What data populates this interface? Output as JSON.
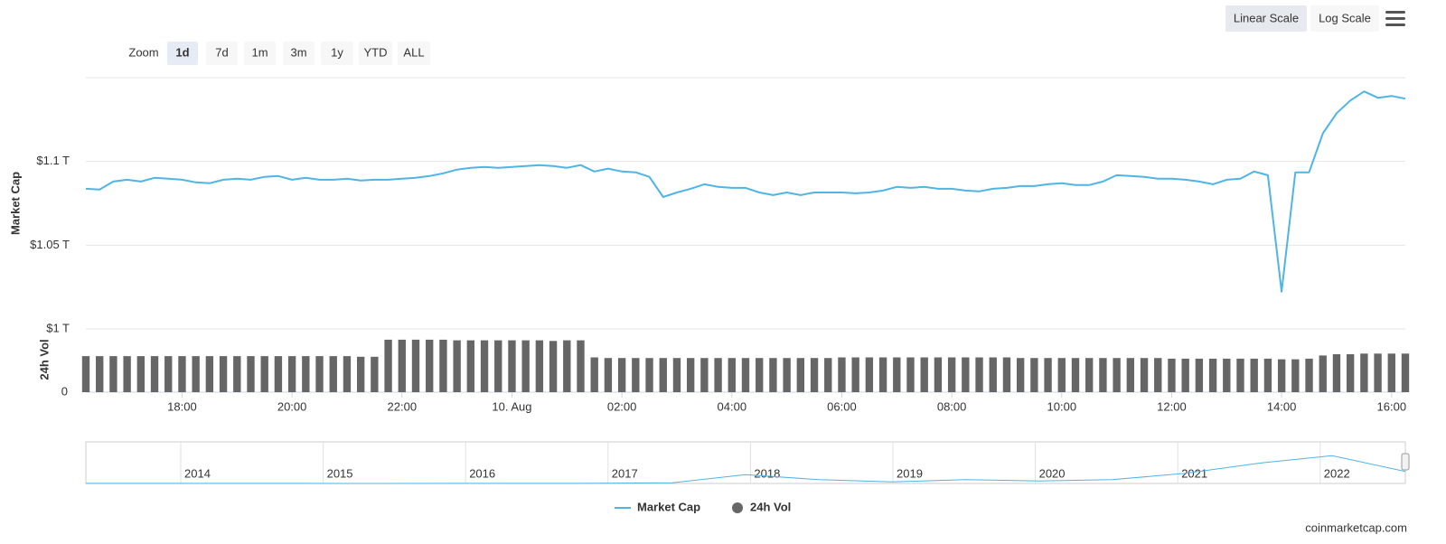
{
  "chart_data": {
    "type": "line",
    "y_label": "Market Cap",
    "y2_label": "24h Vol",
    "categories": [
      null,
      null,
      null,
      null,
      null,
      null,
      null,
      "18:00",
      null,
      null,
      null,
      null,
      null,
      null,
      null,
      "20:00",
      null,
      null,
      null,
      null,
      null,
      null,
      null,
      "22:00",
      null,
      null,
      null,
      null,
      null,
      null,
      null,
      "10. Aug",
      null,
      null,
      null,
      null,
      null,
      null,
      null,
      "02:00",
      null,
      null,
      null,
      null,
      null,
      null,
      null,
      "04:00",
      null,
      null,
      null,
      null,
      null,
      null,
      null,
      "06:00",
      null,
      null,
      null,
      null,
      null,
      null,
      null,
      "08:00",
      null,
      null,
      null,
      null,
      null,
      null,
      null,
      "10:00",
      null,
      null,
      null,
      null,
      null,
      null,
      null,
      "12:00",
      null,
      null,
      null,
      null,
      null,
      null,
      null,
      "14:00",
      null,
      null,
      null,
      null,
      null,
      null,
      null,
      "16:00",
      null
    ],
    "series": [
      {
        "name": "Market Cap",
        "color": "#4fb4e6",
        "type": "line",
        "values": [
          1.0837,
          1.0832,
          1.088,
          1.0891,
          1.088,
          1.0902,
          1.0897,
          1.0891,
          1.0875,
          1.087,
          1.0891,
          1.0897,
          1.0891,
          1.0908,
          1.0913,
          1.0891,
          1.0902,
          1.0891,
          1.0891,
          1.0897,
          1.0886,
          1.0891,
          1.0891,
          1.0897,
          1.0902,
          1.0913,
          1.0929,
          1.0951,
          1.0962,
          1.0967,
          1.0962,
          1.0967,
          1.0973,
          1.0978,
          1.0973,
          1.0962,
          1.0978,
          1.094,
          1.0957,
          1.094,
          1.0935,
          1.0908,
          1.0788,
          1.0815,
          1.0837,
          1.0864,
          1.0848,
          1.0842,
          1.0842,
          1.0815,
          1.0799,
          1.0815,
          1.0799,
          1.0815,
          1.0815,
          1.0815,
          1.081,
          1.0815,
          1.0826,
          1.0848,
          1.0842,
          1.0848,
          1.0837,
          1.0837,
          1.0826,
          1.0821,
          1.0837,
          1.0842,
          1.0853,
          1.0853,
          1.0864,
          1.087,
          1.0859,
          1.0859,
          1.088,
          1.0918,
          1.0913,
          1.0908,
          1.0897,
          1.0897,
          1.0891,
          1.088,
          1.0864,
          1.0891,
          1.0897,
          1.094,
          1.0918,
          1.0223,
          1.0935,
          1.0935,
          1.1168,
          1.1288,
          1.1364,
          1.1418,
          1.138,
          1.1391,
          1.1375
        ]
      },
      {
        "name": "24h Vol",
        "color": "#666666",
        "type": "bar",
        "axis": "y2",
        "values": [
          57,
          57,
          57,
          57,
          57,
          57,
          57,
          57,
          57,
          57,
          57,
          57,
          57,
          57,
          57,
          57,
          57,
          57,
          57,
          57,
          56,
          56,
          83,
          83,
          83,
          83,
          83,
          82,
          82,
          82,
          82,
          82,
          82,
          82,
          81,
          82,
          82,
          55,
          54,
          54,
          54,
          54,
          54,
          54,
          54,
          54,
          54,
          54,
          54,
          54,
          54,
          54,
          54,
          54,
          54,
          55,
          55,
          55,
          55,
          55,
          55,
          55,
          55,
          55,
          55,
          55,
          55,
          55,
          54,
          54,
          54,
          54,
          54,
          54,
          54,
          54,
          54,
          54,
          54,
          53,
          53,
          53,
          53,
          53,
          53,
          53,
          53,
          52,
          52,
          53,
          58,
          60,
          60,
          61,
          61,
          61,
          61
        ]
      }
    ],
    "ylim": [
      1.0,
      1.15
    ],
    "yticks": [
      {
        "value": 1.0,
        "label": "$1 T"
      },
      {
        "value": 1.05,
        "label": "$1.05 T"
      },
      {
        "value": 1.1,
        "label": "$1.1 T"
      }
    ],
    "y2lim": [
      0,
      100
    ],
    "y2ticks": [
      0
    ],
    "grid": true,
    "zoom": {
      "label": "Zoom",
      "buttons": [
        "1d",
        "7d",
        "1m",
        "3m",
        "1y",
        "YTD",
        "ALL"
      ],
      "active": 0
    },
    "scale_buttons": [
      "Linear Scale",
      "Log Scale"
    ],
    "navigator": {
      "years": [
        "2014",
        "2015",
        "2016",
        "2017",
        "2018",
        "2019",
        "2020",
        "2021",
        "2022"
      ],
      "ylim": [
        0,
        3
      ],
      "values": [
        0.008,
        0.01,
        0.006,
        0.004,
        0.003,
        0.006,
        0.01,
        0.017,
        0.06,
        0.7,
        0.3,
        0.13,
        0.3,
        0.2,
        0.3,
        0.8,
        1.6,
        2.2,
        0.95
      ]
    },
    "credit": "coinmarketcap.com"
  }
}
